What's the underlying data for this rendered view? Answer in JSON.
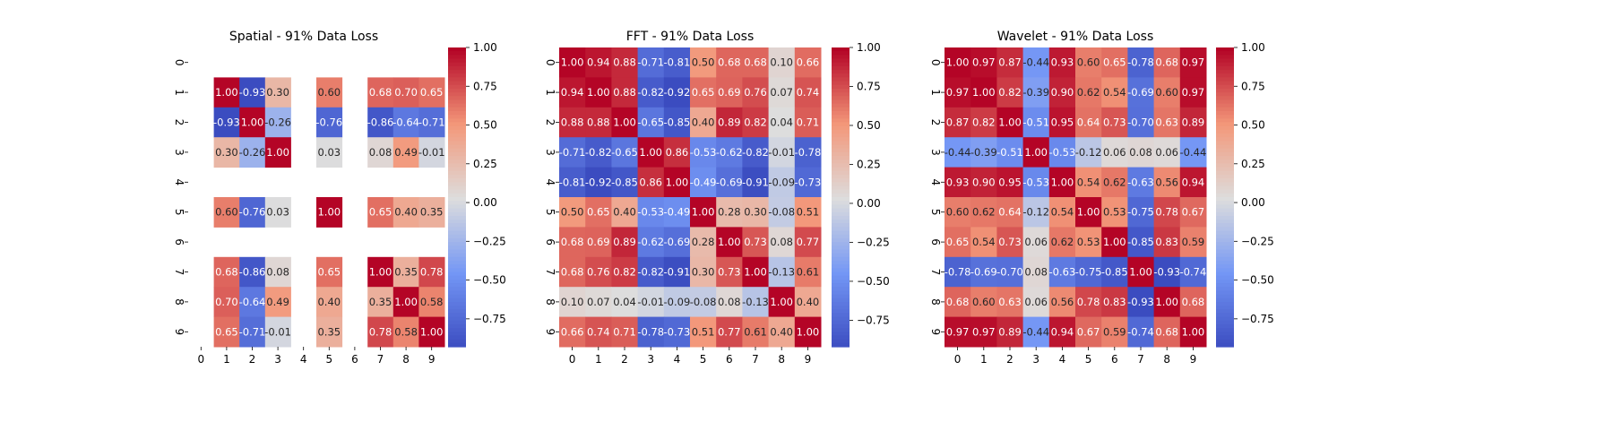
{
  "colormap": {
    "name": "coolwarm",
    "stops": [
      {
        "v": -1.0,
        "color": "#3b4cc0"
      },
      {
        "v": -0.5,
        "color": "#7396f5"
      },
      {
        "v": 0.0,
        "color": "#dddddd"
      },
      {
        "v": 0.5,
        "color": "#f39779"
      },
      {
        "v": 1.0,
        "color": "#b40426"
      }
    ]
  },
  "chart_data": [
    {
      "type": "heatmap",
      "title": "Spatial - 91% Data Loss",
      "x_ticks": [
        "0",
        "1",
        "2",
        "3",
        "4",
        "5",
        "6",
        "7",
        "8",
        "9"
      ],
      "y_ticks": [
        "0",
        "1",
        "2",
        "3",
        "4",
        "5",
        "6",
        "7",
        "8",
        "9"
      ],
      "colorbar": {
        "min": -0.93,
        "max": 1.0,
        "ticks": [
          "1.00",
          "0.75",
          "0.50",
          "0.25",
          "0.00",
          "−0.25",
          "−0.50",
          "−0.75"
        ]
      },
      "matrix": [
        [
          null,
          null,
          null,
          null,
          null,
          null,
          null,
          null,
          null,
          null
        ],
        [
          null,
          1.0,
          -0.93,
          0.3,
          null,
          0.6,
          null,
          0.68,
          0.7,
          0.65
        ],
        [
          null,
          -0.93,
          1.0,
          -0.26,
          null,
          -0.76,
          null,
          -0.86,
          -0.64,
          -0.71
        ],
        [
          null,
          0.3,
          -0.26,
          1.0,
          null,
          0.03,
          null,
          0.08,
          0.49,
          -0.01
        ],
        [
          null,
          null,
          null,
          null,
          null,
          null,
          null,
          null,
          null,
          null
        ],
        [
          null,
          0.6,
          -0.76,
          0.03,
          null,
          1.0,
          null,
          0.65,
          0.4,
          0.35
        ],
        [
          null,
          null,
          null,
          null,
          null,
          null,
          null,
          null,
          null,
          null
        ],
        [
          null,
          0.68,
          -0.86,
          0.08,
          null,
          0.65,
          null,
          1.0,
          0.35,
          0.78
        ],
        [
          null,
          0.7,
          -0.64,
          0.49,
          null,
          0.4,
          null,
          0.35,
          1.0,
          0.58
        ],
        [
          null,
          0.65,
          -0.71,
          -0.01,
          null,
          0.35,
          null,
          0.78,
          0.58,
          1.0
        ]
      ]
    },
    {
      "type": "heatmap",
      "title": "FFT - 91% Data Loss",
      "x_ticks": [
        "0",
        "1",
        "2",
        "3",
        "4",
        "5",
        "6",
        "7",
        "8",
        "9"
      ],
      "y_ticks": [
        "0",
        "1",
        "2",
        "3",
        "4",
        "5",
        "6",
        "7",
        "8",
        "9"
      ],
      "colorbar": {
        "min": -0.92,
        "max": 1.0,
        "ticks": [
          "1.00",
          "0.75",
          "0.50",
          "0.25",
          "0.00",
          "−0.25",
          "−0.50",
          "−0.75"
        ]
      },
      "matrix": [
        [
          1.0,
          0.94,
          0.88,
          -0.71,
          -0.81,
          0.5,
          0.68,
          0.68,
          0.1,
          0.66
        ],
        [
          0.94,
          1.0,
          0.88,
          -0.82,
          -0.92,
          0.65,
          0.69,
          0.76,
          0.07,
          0.74
        ],
        [
          0.88,
          0.88,
          1.0,
          -0.65,
          -0.85,
          0.4,
          0.89,
          0.82,
          0.04,
          0.71
        ],
        [
          -0.71,
          -0.82,
          -0.65,
          1.0,
          0.86,
          -0.53,
          -0.62,
          -0.82,
          -0.01,
          -0.78
        ],
        [
          -0.81,
          -0.92,
          -0.85,
          0.86,
          1.0,
          -0.49,
          -0.69,
          -0.91,
          -0.09,
          -0.73
        ],
        [
          0.5,
          0.65,
          0.4,
          -0.53,
          -0.49,
          1.0,
          0.28,
          0.3,
          -0.08,
          0.51
        ],
        [
          0.68,
          0.69,
          0.89,
          -0.62,
          -0.69,
          0.28,
          1.0,
          0.73,
          0.08,
          0.77
        ],
        [
          0.68,
          0.76,
          0.82,
          -0.82,
          -0.91,
          0.3,
          0.73,
          1.0,
          -0.13,
          0.61
        ],
        [
          0.1,
          0.07,
          0.04,
          -0.01,
          -0.09,
          -0.08,
          0.08,
          -0.13,
          1.0,
          0.4
        ],
        [
          0.66,
          0.74,
          0.71,
          -0.78,
          -0.73,
          0.51,
          0.77,
          0.61,
          0.4,
          1.0
        ]
      ]
    },
    {
      "type": "heatmap",
      "title": "Wavelet - 91% Data Loss",
      "x_ticks": [
        "0",
        "1",
        "2",
        "3",
        "4",
        "5",
        "6",
        "7",
        "8",
        "9"
      ],
      "y_ticks": [
        "0",
        "1",
        "2",
        "3",
        "4",
        "5",
        "6",
        "7",
        "8",
        "9"
      ],
      "colorbar": {
        "min": -0.93,
        "max": 1.0,
        "ticks": [
          "1.00",
          "0.75",
          "0.50",
          "0.25",
          "0.00",
          "−0.25",
          "−0.50",
          "−0.75"
        ]
      },
      "matrix": [
        [
          1.0,
          0.97,
          0.87,
          -0.44,
          0.93,
          0.6,
          0.65,
          -0.78,
          0.68,
          0.97
        ],
        [
          0.97,
          1.0,
          0.82,
          -0.39,
          0.9,
          0.62,
          0.54,
          -0.69,
          0.6,
          0.97
        ],
        [
          0.87,
          0.82,
          1.0,
          -0.51,
          0.95,
          0.64,
          0.73,
          -0.7,
          0.63,
          0.89
        ],
        [
          -0.44,
          -0.39,
          -0.51,
          1.0,
          -0.53,
          -0.12,
          0.06,
          0.08,
          0.06,
          -0.44
        ],
        [
          0.93,
          0.9,
          0.95,
          -0.53,
          1.0,
          0.54,
          0.62,
          -0.63,
          0.56,
          0.94
        ],
        [
          0.6,
          0.62,
          0.64,
          -0.12,
          0.54,
          1.0,
          0.53,
          -0.75,
          0.78,
          0.67
        ],
        [
          0.65,
          0.54,
          0.73,
          0.06,
          0.62,
          0.53,
          1.0,
          -0.85,
          0.83,
          0.59
        ],
        [
          -0.78,
          -0.69,
          -0.7,
          0.08,
          -0.63,
          -0.75,
          -0.85,
          1.0,
          -0.93,
          -0.74
        ],
        [
          0.68,
          0.6,
          0.63,
          0.06,
          0.56,
          0.78,
          0.83,
          -0.93,
          1.0,
          0.68
        ],
        [
          0.97,
          0.97,
          0.89,
          -0.44,
          0.94,
          0.67,
          0.59,
          -0.74,
          0.68,
          1.0
        ]
      ]
    }
  ]
}
